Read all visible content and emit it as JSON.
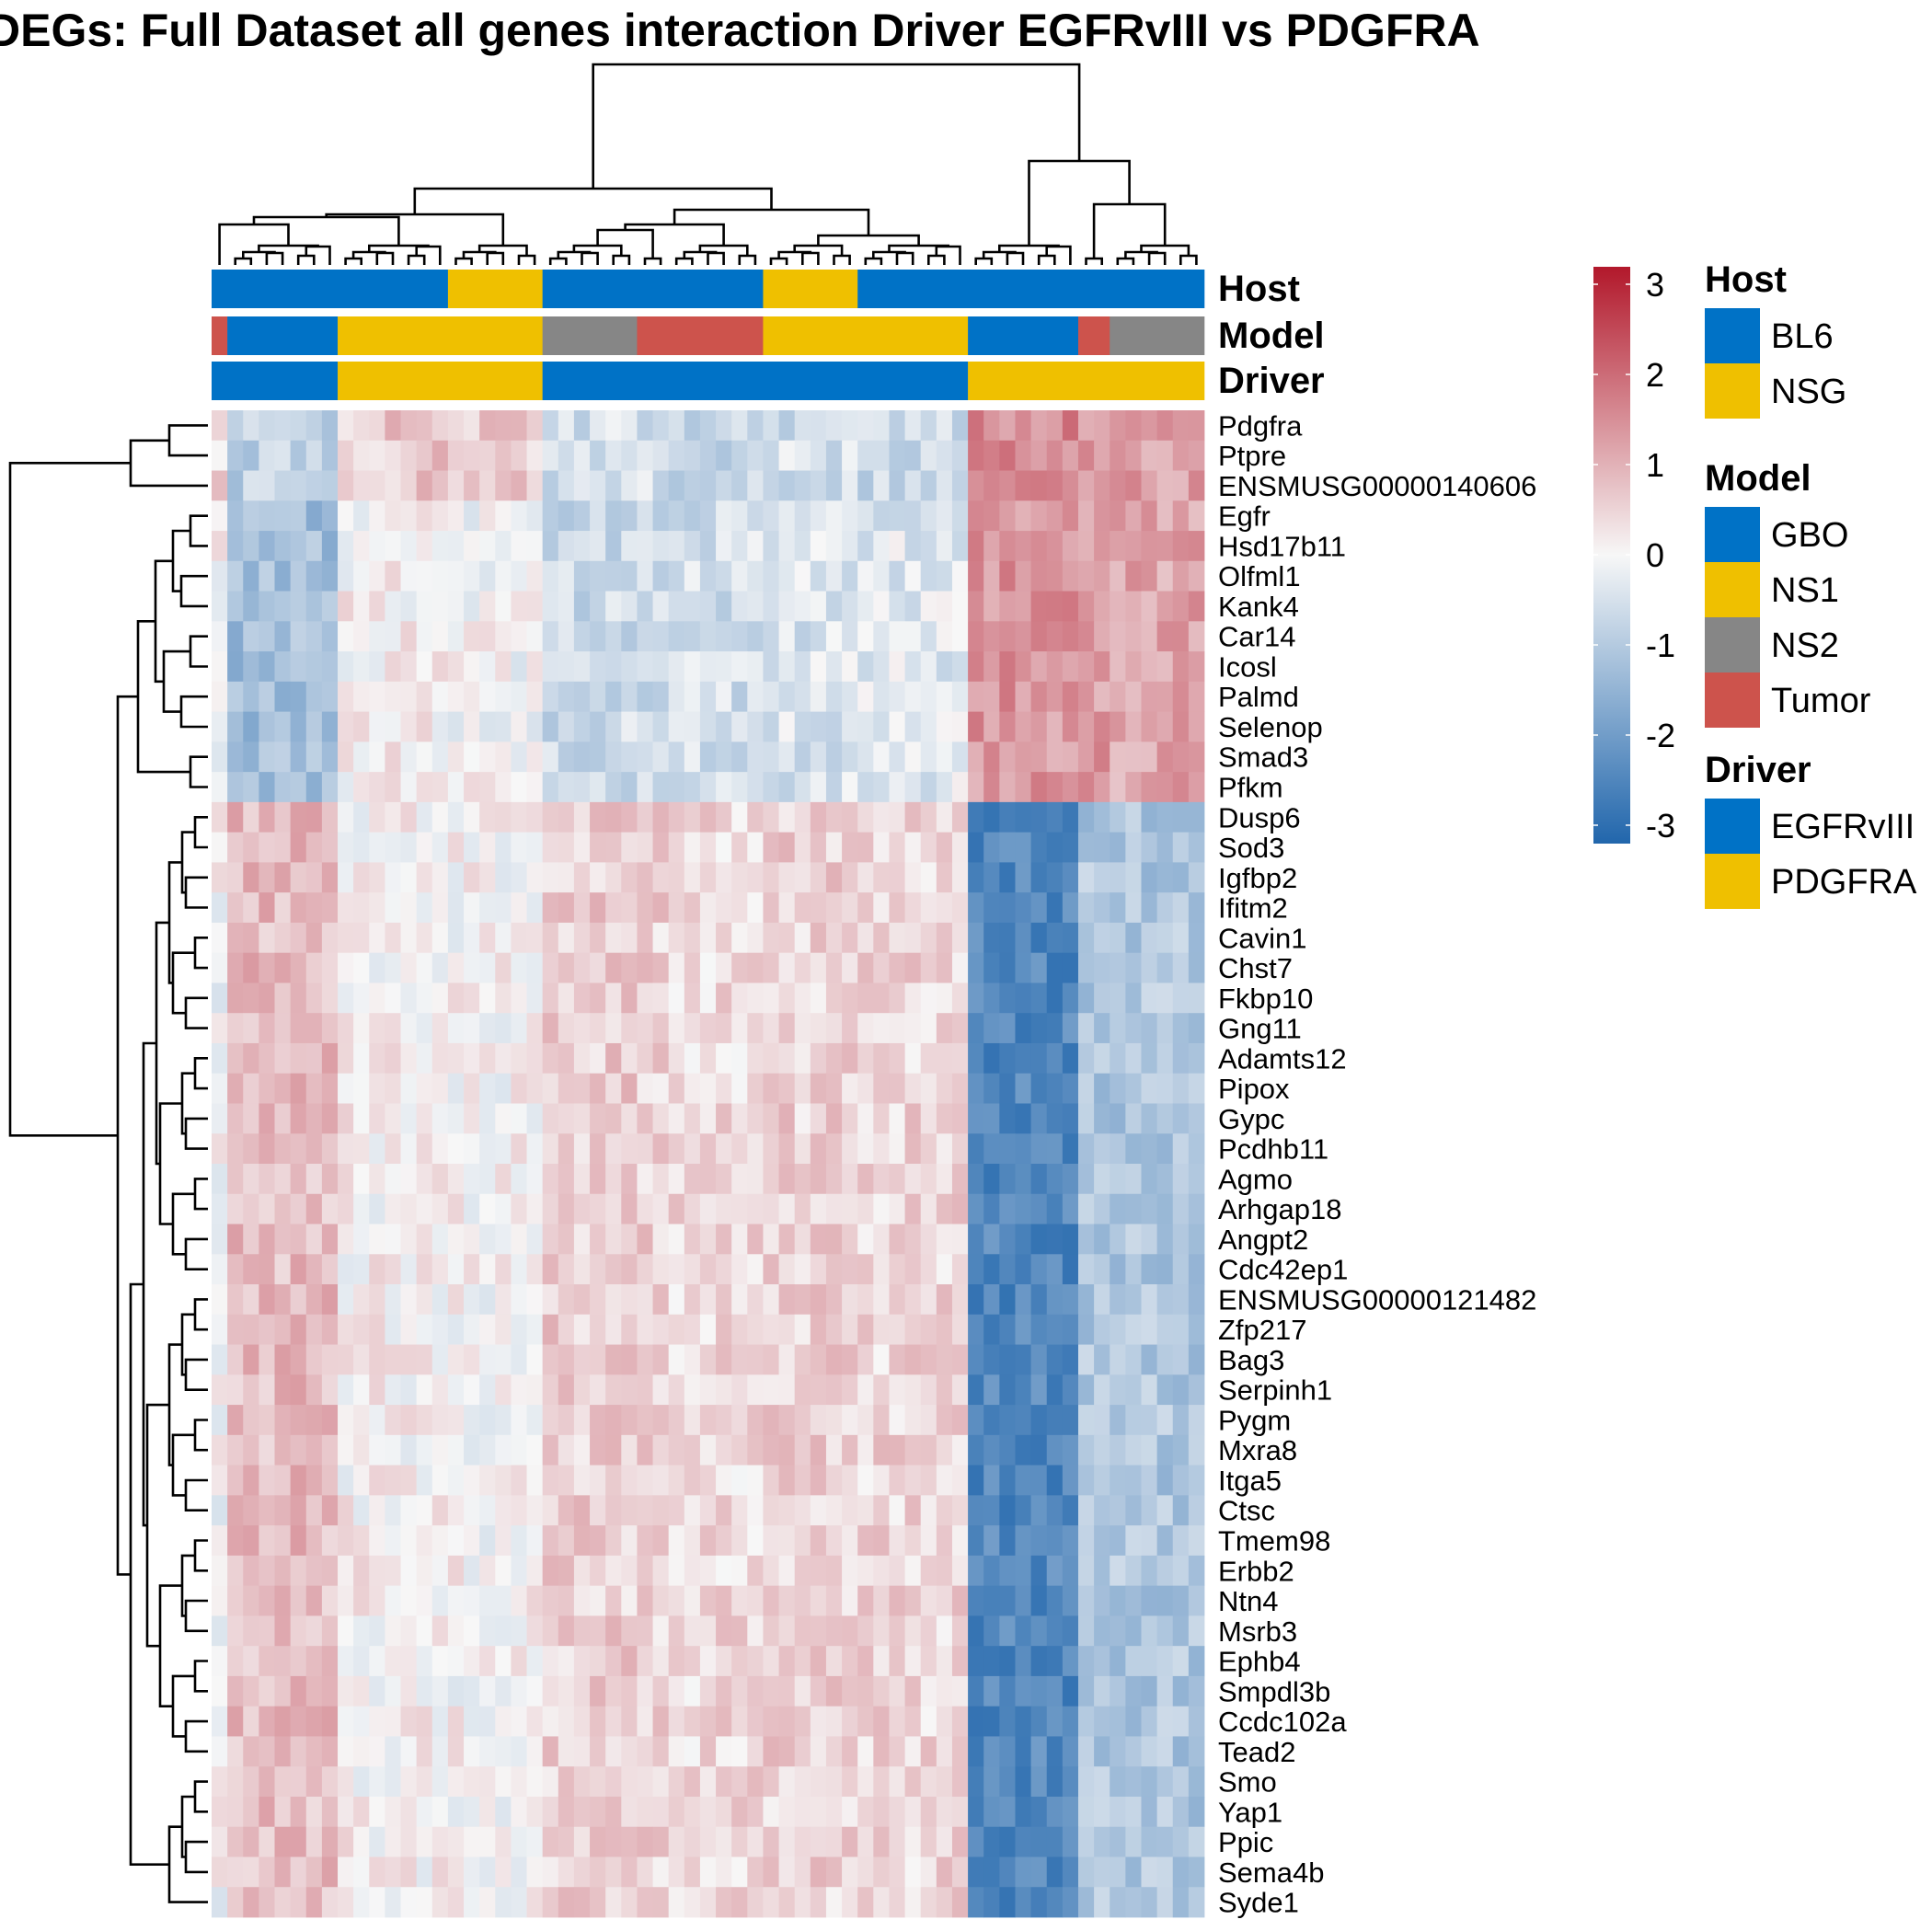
{
  "chart_data": {
    "type": "heatmap",
    "title": "DEGs: Full Dataset all genes interaction Driver EGFRvIII vs PDGFRA",
    "genes": [
      "Pdgfra",
      "Ptpre",
      "ENSMUSG00000140606",
      "Egfr",
      "Hsd17b11",
      "Olfml1",
      "Kank4",
      "Car14",
      "Icosl",
      "Palmd",
      "Selenop",
      "Smad3",
      "Pfkm",
      "Dusp6",
      "Sod3",
      "Igfbp2",
      "Ifitm2",
      "Cavin1",
      "Chst7",
      "Fkbp10",
      "Gng11",
      "Adamts12",
      "Pipox",
      "Gypc",
      "Pcdhb11",
      "Agmo",
      "Arhgap18",
      "Angpt2",
      "Cdc42ep1",
      "ENSMUSG00000121482",
      "Zfp217",
      "Bag3",
      "Serpinh1",
      "Pygm",
      "Mxra8",
      "Itga5",
      "Ctsc",
      "Tmem98",
      "Erbb2",
      "Ntn4",
      "Msrb3",
      "Ephb4",
      "Smpdl3b",
      "Ccdc102a",
      "Tead2",
      "Smo",
      "Yap1",
      "Ppic",
      "Sema4b",
      "Syde1"
    ],
    "column_groups": [
      {
        "n": 1,
        "host": "BL6",
        "model": "Tumor",
        "driver": "EGFRvIII",
        "profile": [
          0.4,
          0.0,
          0.0
        ]
      },
      {
        "n": 7,
        "host": "BL6",
        "model": "GBO",
        "driver": "EGFRvIII",
        "profile": [
          -0.8,
          -1.2,
          0.8
        ]
      },
      {
        "n": 7,
        "host": "BL6",
        "model": "NS1",
        "driver": "PDGFRA",
        "profile": [
          0.6,
          0.1,
          0.1
        ]
      },
      {
        "n": 6,
        "host": "NSG",
        "model": "NS1",
        "driver": "PDGFRA",
        "profile": [
          0.6,
          0.0,
          0.05
        ]
      },
      {
        "n": 6,
        "host": "BL6",
        "model": "NS2",
        "driver": "EGFRvIII",
        "profile": [
          -0.5,
          -0.6,
          0.55
        ]
      },
      {
        "n": 2,
        "host": "BL6",
        "model": "Tumor",
        "driver": "EGFRvIII",
        "profile": [
          -0.5,
          -0.6,
          0.5
        ]
      },
      {
        "n": 6,
        "host": "BL6",
        "model": "Tumor",
        "driver": "EGFRvIII",
        "profile": [
          -0.6,
          -0.5,
          0.4
        ]
      },
      {
        "n": 6,
        "host": "NSG",
        "model": "NS1",
        "driver": "EGFRvIII",
        "profile": [
          -0.5,
          -0.4,
          0.5
        ]
      },
      {
        "n": 7,
        "host": "BL6",
        "model": "NS1",
        "driver": "EGFRvIII",
        "profile": [
          -0.6,
          -0.3,
          0.45
        ]
      },
      {
        "n": 7,
        "host": "BL6",
        "model": "GBO",
        "driver": "PDGFRA",
        "profile": [
          1.5,
          1.3,
          -2.3
        ]
      },
      {
        "n": 2,
        "host": "BL6",
        "model": "Tumor",
        "driver": "PDGFRA",
        "profile": [
          1.2,
          1.2,
          -1.0
        ]
      },
      {
        "n": 6,
        "host": "BL6",
        "model": "NS2",
        "driver": "PDGFRA",
        "profile": [
          1.2,
          1.1,
          -1.0
        ]
      }
    ],
    "color_scale": {
      "min": -3,
      "max": 3,
      "ticks": [
        "3",
        "2",
        "1",
        "0",
        "-1",
        "-2",
        "-3"
      ],
      "low": "#2166ac",
      "mid": "#f7f7f7",
      "high": "#b2182b"
    },
    "legend": [
      {
        "name": "Host",
        "items": [
          {
            "label": "BL6",
            "color": "#0072c6"
          },
          {
            "label": "NSG",
            "color": "#efc000"
          }
        ]
      },
      {
        "name": "Model",
        "items": [
          {
            "label": "GBO",
            "color": "#0072c6"
          },
          {
            "label": "NS1",
            "color": "#efc000"
          },
          {
            "label": "NS2",
            "color": "#868686"
          },
          {
            "label": "Tumor",
            "color": "#cd534c"
          }
        ]
      },
      {
        "name": "Driver",
        "items": [
          {
            "label": "EGFRvIII",
            "color": "#0072c6"
          },
          {
            "label": "PDGFRA",
            "color": "#efc000"
          }
        ]
      }
    ],
    "annotation_rows": [
      "Host",
      "Model",
      "Driver"
    ],
    "row_dendrogram": true,
    "column_dendrogram": true,
    "legend_position": "right"
  }
}
